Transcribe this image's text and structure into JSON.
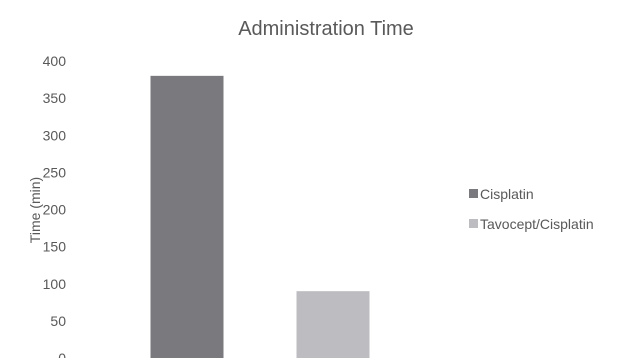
{
  "chart_data": {
    "type": "bar",
    "title": "Administration Time",
    "xlabel": "",
    "ylabel": "Time (min)",
    "ylim": [
      0,
      400
    ],
    "yticks": [
      0,
      50,
      100,
      150,
      200,
      250,
      300,
      350,
      400
    ],
    "series": [
      {
        "name": "Cisplatin",
        "value": 380,
        "color": "#7a7a7e"
      },
      {
        "name": "Tavocept/Cisplatin",
        "value": 90,
        "color": "#bdbdc1"
      }
    ],
    "grid": false,
    "legend_position": "right"
  }
}
